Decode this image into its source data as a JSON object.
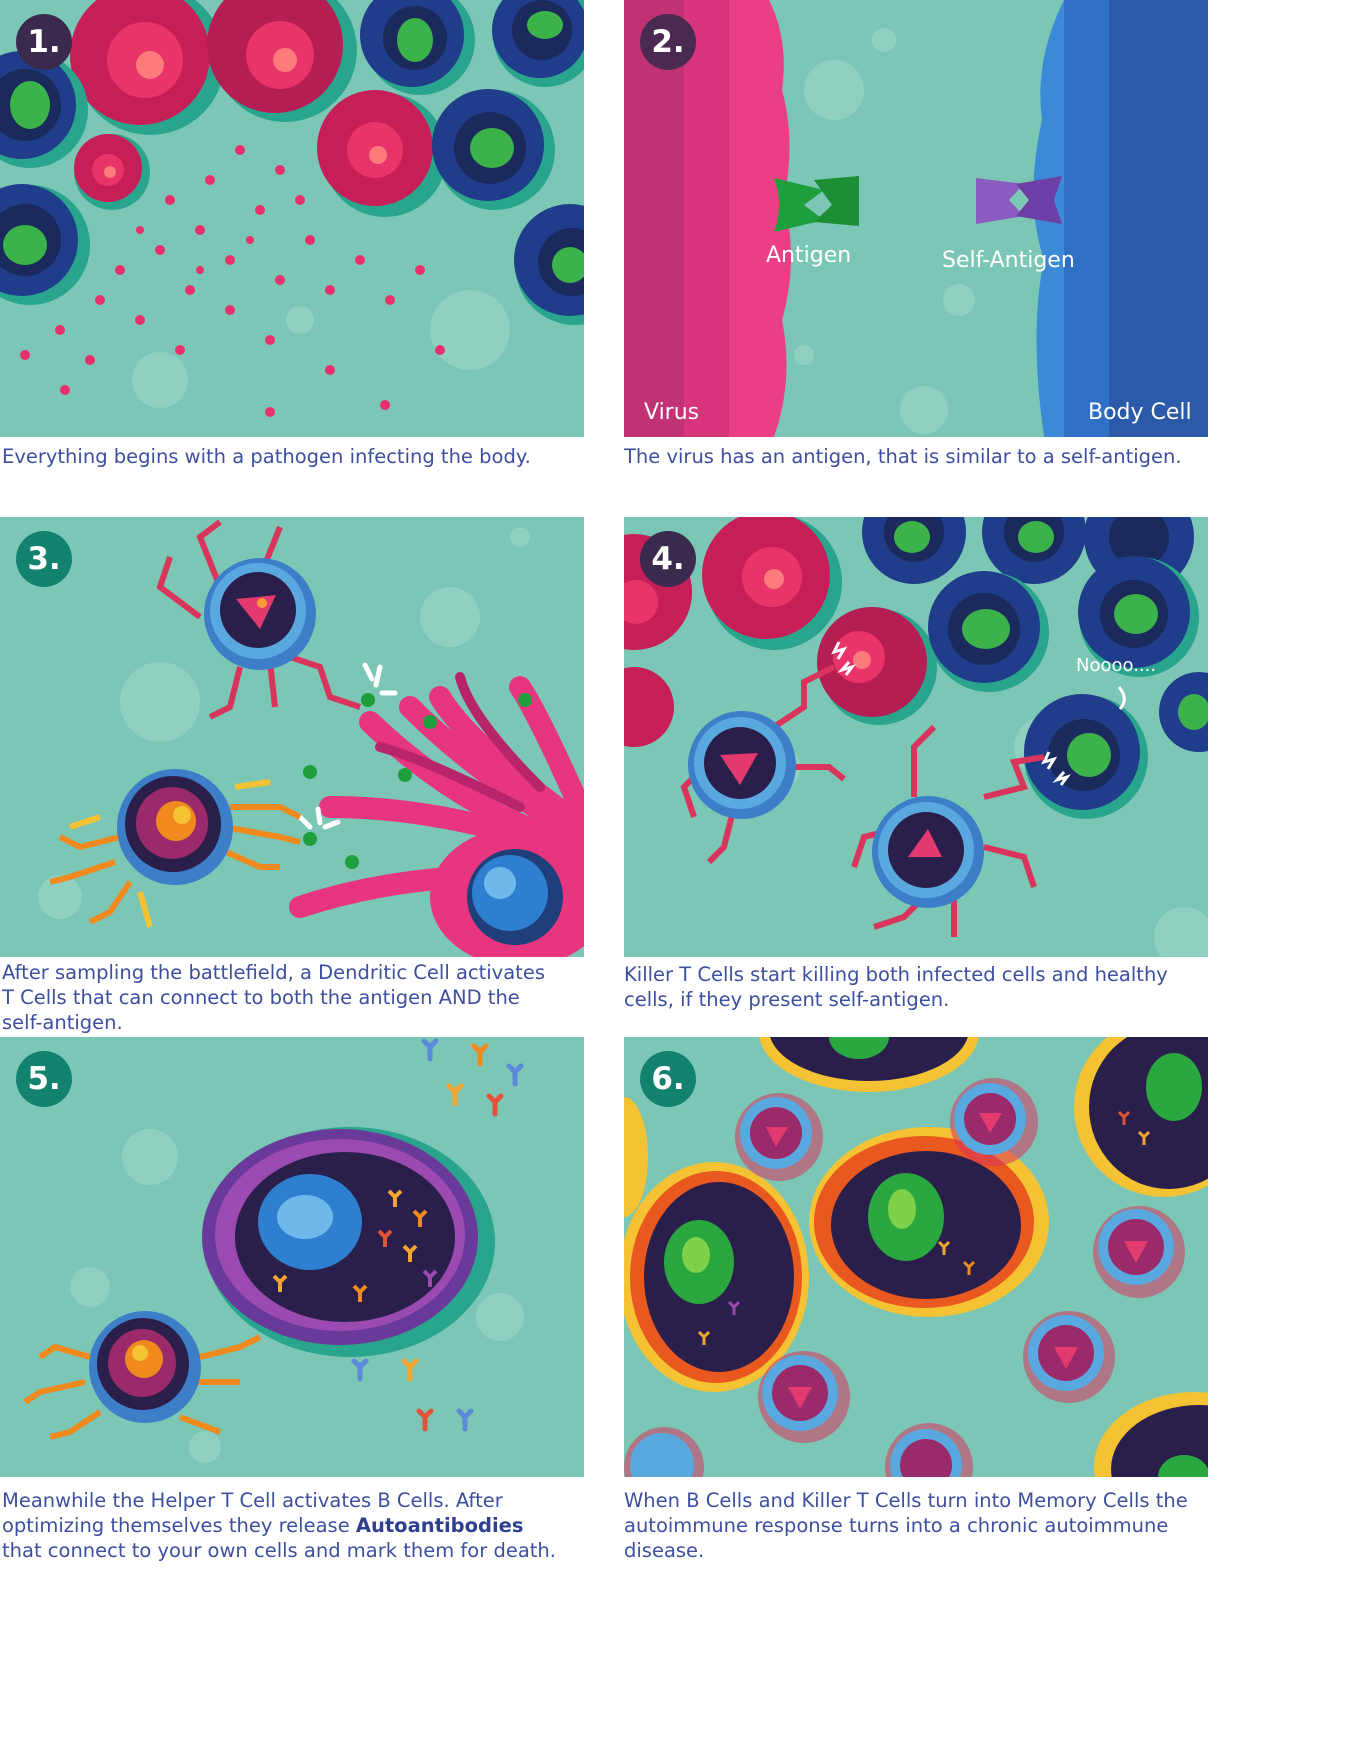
{
  "panels": [
    {
      "number": "1.",
      "caption": "Everything begins with a pathogen infecting the body."
    },
    {
      "number": "2.",
      "caption": "The virus has an antigen, that is similar to a self-antigen.",
      "labels": {
        "antigen": "Antigen",
        "self_antigen": "Self-Antigen",
        "virus": "Virus",
        "body_cell": "Body Cell"
      }
    },
    {
      "number": "3.",
      "caption": "After sampling the battlefield, a Dendritic Cell activates T Cells that can connect to both the antigen AND the self-antigen."
    },
    {
      "number": "4.",
      "caption": "Killer T Cells start killing both infected cells and healthy cells, if they present self-antigen.",
      "labels": {
        "speech": "Noooo...."
      }
    },
    {
      "number": "5.",
      "caption_before": "Meanwhile the Helper T Cell activates B Cells. After optimizing themselves they release ",
      "caption_bold": "Autoantibodies",
      "caption_after": " that connect to your own cells and mark them for death."
    },
    {
      "number": "6.",
      "caption": "When B Cells and Killer T Cells turn into Memory Cells the autoimmune response turns into a chronic autoimmune disease."
    }
  ],
  "colors": {
    "background": "#7cc6b5",
    "caption_text": "#3d4f9e",
    "badge_dark": "#3a2b4e",
    "badge_teal": "#13836f",
    "virus_pink": "#e43a84",
    "body_cell_blue": "#2f6fc4",
    "antigen_green": "#1f9e3e",
    "self_antigen_purple": "#7a4fb0"
  }
}
